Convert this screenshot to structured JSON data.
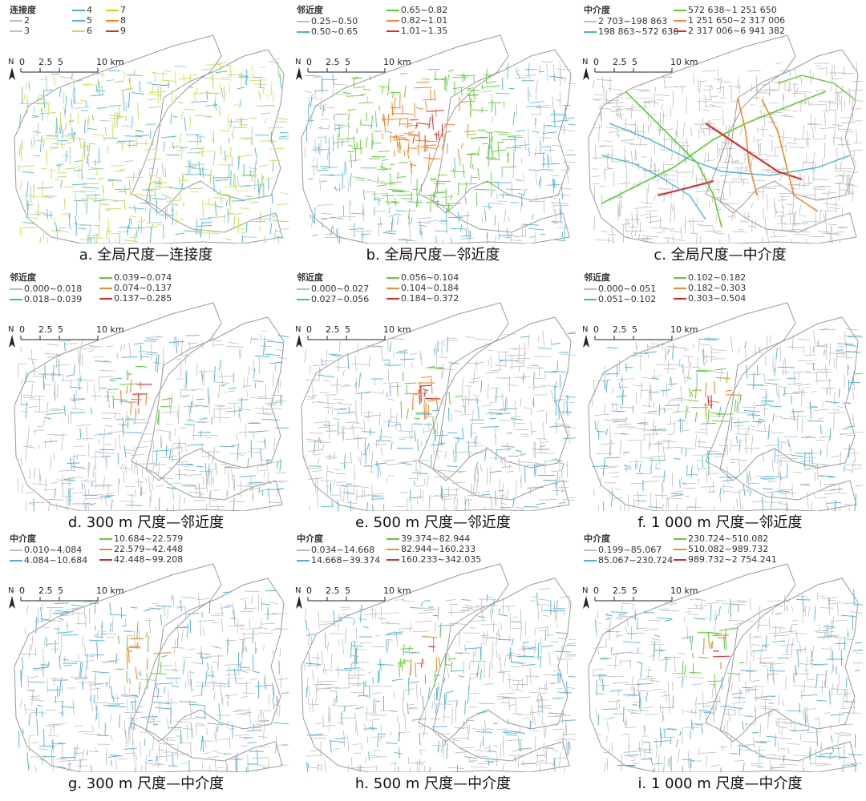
{
  "panels": [
    {
      "id": "a",
      "caption": "a. 全局尺度—连接度",
      "legend_title": "连接度",
      "legend_layout": "3col",
      "legend_items": [
        {
          "label": "2",
          "color": "#bdbdbd"
        },
        {
          "label": "3",
          "color": "#9ec9e0"
        },
        {
          "label": "4",
          "color": "#46b2dc"
        },
        {
          "label": "5",
          "color": "#4fc0c8"
        },
        {
          "label": "6",
          "color": "#c9dc4a"
        },
        {
          "label": "7",
          "color": "#f2c230"
        },
        {
          "label": "8",
          "color": "#f08a2a"
        },
        {
          "label": "9",
          "color": "#e02a2a"
        }
      ],
      "scale": {
        "north": "N",
        "ticks": [
          "0",
          "2.5",
          "5",
          "10 km"
        ]
      },
      "style": "connectivity"
    },
    {
      "id": "b",
      "caption": "b. 全局尺度—邻近度",
      "legend_title": "邻近度",
      "legend_layout": "2col",
      "legend_items": [
        {
          "label": "0.25~0.50",
          "color": "#bdbdbd"
        },
        {
          "label": "0.50~0.65",
          "color": "#46b2dc"
        },
        {
          "label": "0.65~0.82",
          "color": "#5ccf2e"
        },
        {
          "label": "0.82~1.01",
          "color": "#f08a2a"
        },
        {
          "label": "1.01~1.35",
          "color": "#e02a2a"
        }
      ],
      "scale": {
        "north": "N",
        "ticks": [
          "0",
          "2.5",
          "5",
          "10 km"
        ]
      },
      "style": "global-closeness"
    },
    {
      "id": "c",
      "caption": "c. 全局尺度—中介度",
      "legend_title": "中介度",
      "legend_layout": "2col",
      "legend_items": [
        {
          "label": "2 703~198 863",
          "color": "#bdbdbd"
        },
        {
          "label": "198 863~572 638",
          "color": "#46b2dc"
        },
        {
          "label": "572 638~1 251 650",
          "color": "#5ccf2e"
        },
        {
          "label": "1 251 650~2 317 006",
          "color": "#f08a2a"
        },
        {
          "label": "2 317 006~6 941 382",
          "color": "#e02a2a"
        }
      ],
      "scale": {
        "north": "N",
        "ticks": [
          "0",
          "2.5",
          "5",
          "10 km"
        ]
      },
      "style": "global-betweenness"
    },
    {
      "id": "d",
      "caption": "d. 300 m 尺度—邻近度",
      "legend_title": "邻近度",
      "legend_layout": "2col",
      "legend_items": [
        {
          "label": "0.000~0.018",
          "color": "#bdbdbd"
        },
        {
          "label": "0.018~0.039",
          "color": "#46b2dc"
        },
        {
          "label": "0.039~0.074",
          "color": "#5ccf2e"
        },
        {
          "label": "0.074~0.137",
          "color": "#f08a2a"
        },
        {
          "label": "0.137~0.285",
          "color": "#e02a2a"
        }
      ],
      "scale": {
        "north": "N",
        "ticks": [
          "0",
          "2.5",
          "5",
          "10 km"
        ]
      },
      "style": "local"
    },
    {
      "id": "e",
      "caption": "e. 500 m 尺度—邻近度",
      "legend_title": "邻近度",
      "legend_layout": "2col",
      "legend_items": [
        {
          "label": "0.000~0.027",
          "color": "#bdbdbd"
        },
        {
          "label": "0.027~0.056",
          "color": "#46b2dc"
        },
        {
          "label": "0.056~0.104",
          "color": "#5ccf2e"
        },
        {
          "label": "0.104~0.184",
          "color": "#f08a2a"
        },
        {
          "label": "0.184~0.372",
          "color": "#e02a2a"
        }
      ],
      "scale": {
        "north": "N",
        "ticks": [
          "0",
          "2.5",
          "5",
          "10 km"
        ]
      },
      "style": "local"
    },
    {
      "id": "f",
      "caption": "f. 1 000 m 尺度—邻近度",
      "legend_title": "邻近度",
      "legend_layout": "2col",
      "legend_items": [
        {
          "label": "0.000~0.051",
          "color": "#bdbdbd"
        },
        {
          "label": "0.051~0.102",
          "color": "#46b2dc"
        },
        {
          "label": "0.102~0.182",
          "color": "#5ccf2e"
        },
        {
          "label": "0.182~0.303",
          "color": "#f08a2a"
        },
        {
          "label": "0.303~0.504",
          "color": "#e02a2a"
        }
      ],
      "scale": {
        "north": "N",
        "ticks": [
          "0",
          "2.5",
          "5",
          "10 km"
        ]
      },
      "style": "local"
    },
    {
      "id": "g",
      "caption": "g. 300 m 尺度—中介度",
      "legend_title": "中介度",
      "legend_layout": "2col",
      "legend_items": [
        {
          "label": "0.010~4.084",
          "color": "#bdbdbd"
        },
        {
          "label": "4.084~10.684",
          "color": "#46b2dc"
        },
        {
          "label": "10.684~22.579",
          "color": "#5ccf2e"
        },
        {
          "label": "22.579~42.448",
          "color": "#f08a2a"
        },
        {
          "label": "42.448~99.208",
          "color": "#e02a2a"
        }
      ],
      "scale": {
        "north": "N",
        "ticks": [
          "0",
          "2.5",
          "5",
          "10 km"
        ]
      },
      "style": "local"
    },
    {
      "id": "h",
      "caption": "h. 500 m 尺度—中介度",
      "legend_title": "中介度",
      "legend_layout": "2col",
      "legend_items": [
        {
          "label": "0.034~14.668",
          "color": "#bdbdbd"
        },
        {
          "label": "14.668~39.374",
          "color": "#46b2dc"
        },
        {
          "label": "39.374~82.944",
          "color": "#5ccf2e"
        },
        {
          "label": "82.944~160.233",
          "color": "#f08a2a"
        },
        {
          "label": "160.233~342.035",
          "color": "#e02a2a"
        }
      ],
      "scale": {
        "north": "N",
        "ticks": [
          "0",
          "2.5",
          "5",
          "10 km"
        ]
      },
      "style": "local"
    },
    {
      "id": "i",
      "caption": "i. 1 000 m 尺度—中介度",
      "legend_title": "中介度",
      "legend_layout": "2col",
      "legend_items": [
        {
          "label": "0.199~85.067",
          "color": "#bdbdbd"
        },
        {
          "label": "85.067~230.724",
          "color": "#46b2dc"
        },
        {
          "label": "230.724~510.082",
          "color": "#5ccf2e"
        },
        {
          "label": "510.082~989.732",
          "color": "#f08a2a"
        },
        {
          "label": "989.732~2 754.241",
          "color": "#e02a2a"
        }
      ],
      "scale": {
        "north": "N",
        "ticks": [
          "0",
          "2.5",
          "5",
          "10 km"
        ]
      },
      "style": "local"
    }
  ]
}
